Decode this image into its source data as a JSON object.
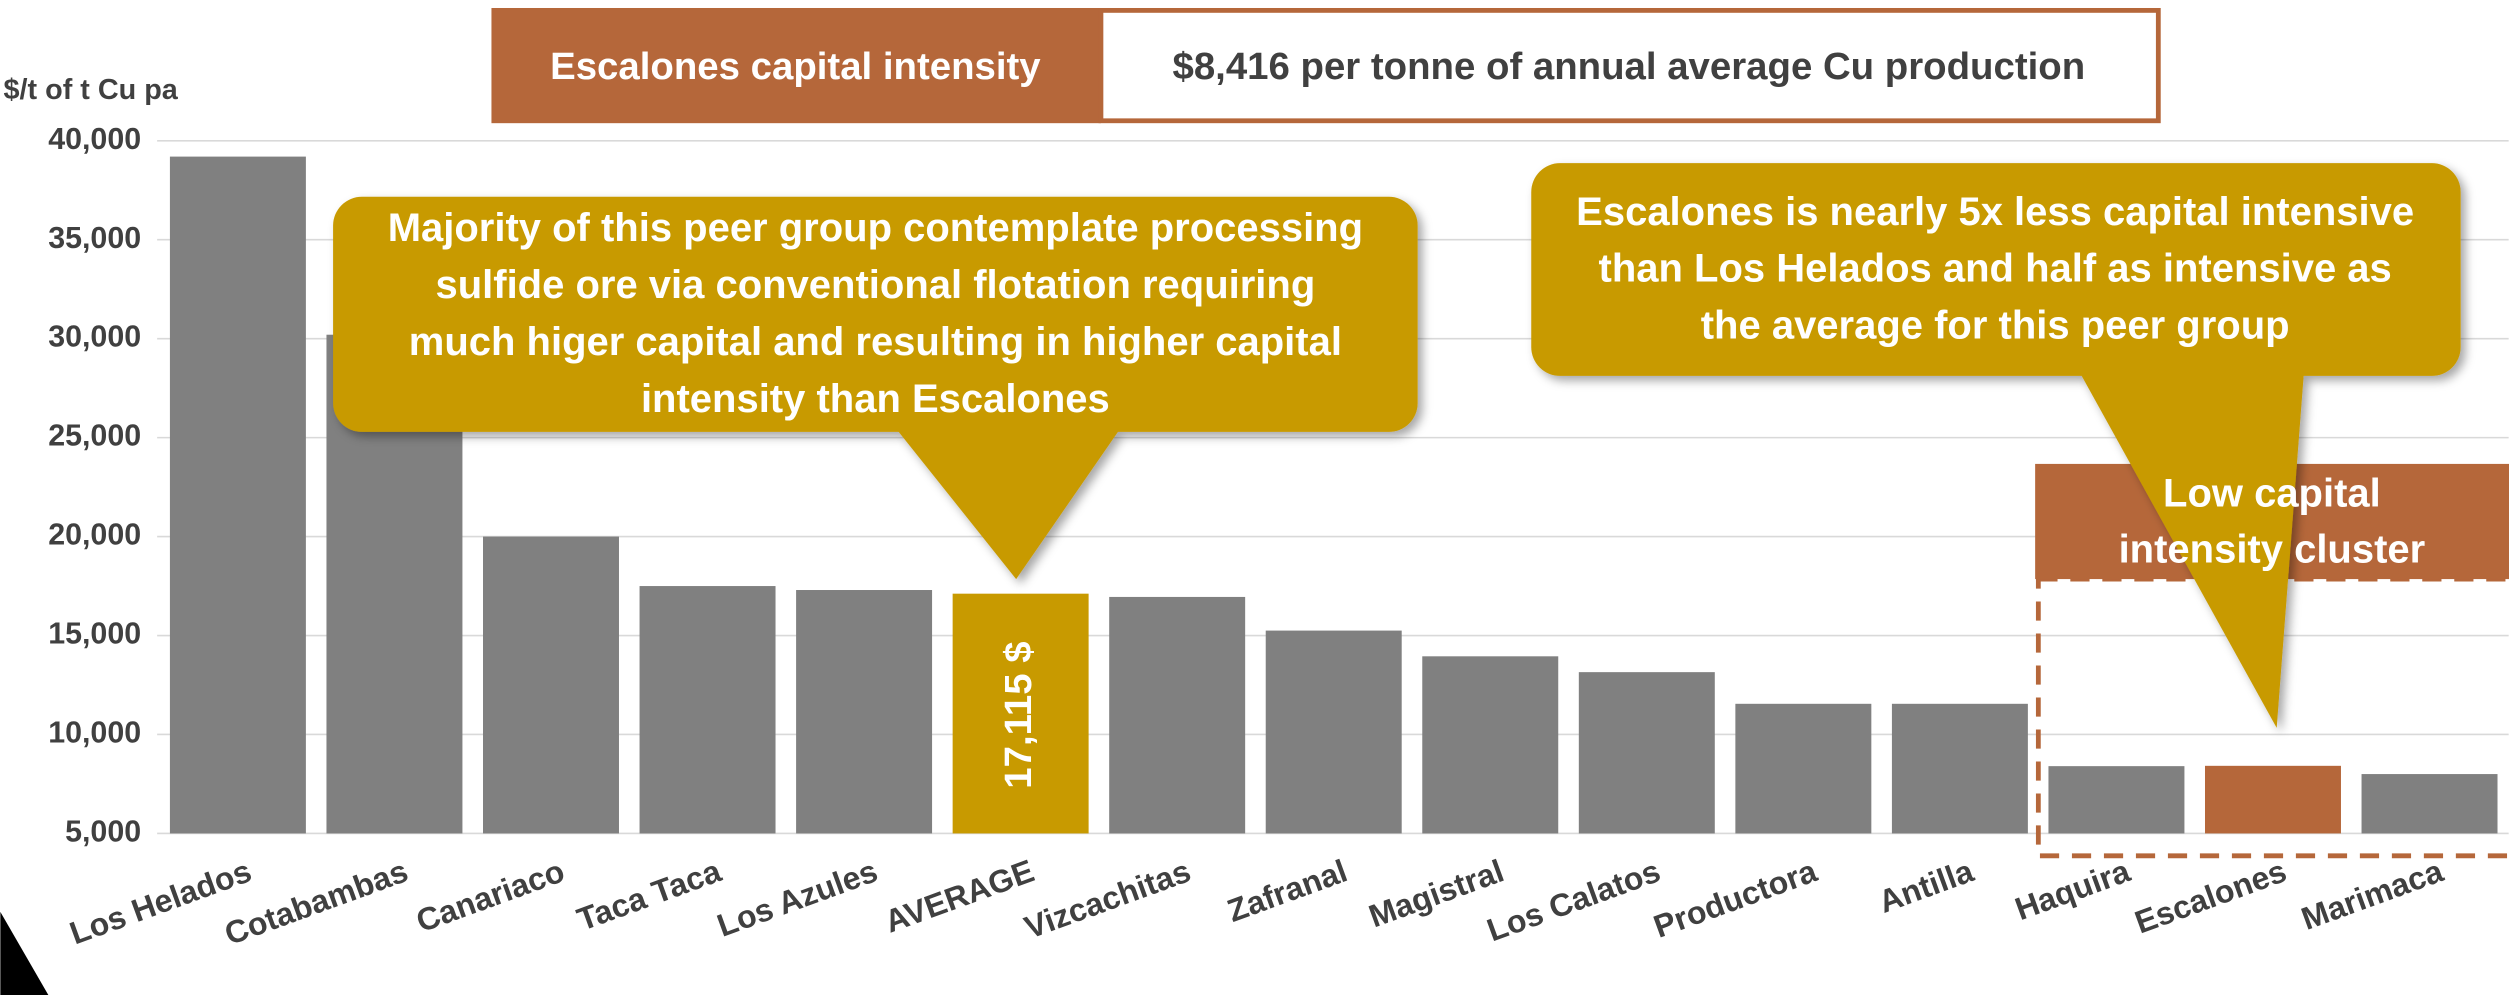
{
  "chart_data": {
    "type": "bar",
    "y_axis_label": "$/t of t Cu pa",
    "header": {
      "label": "Escalones capital intensity",
      "value": "$8,416 per tonne of annual average Cu production"
    },
    "categories": [
      "Los Helados",
      "Cotabambas",
      "Canariaco",
      "Taca Taca",
      "Los Azules",
      "AVERAGE",
      "Vizcachitas",
      "Zafranal",
      "Magistral",
      "Los Calatos",
      "Productora",
      "Antilla",
      "Haquira",
      "Escalones",
      "Marimaca"
    ],
    "values": [
      39200,
      30200,
      20000,
      17500,
      17300,
      17115,
      16950,
      15250,
      13950,
      13150,
      11550,
      11550,
      8400,
      8416,
      8000
    ],
    "value_labels": [
      null,
      null,
      null,
      null,
      null,
      "17,115 $",
      null,
      null,
      null,
      null,
      null,
      null,
      null,
      null,
      null
    ],
    "colors": [
      "#808080",
      "#808080",
      "#808080",
      "#808080",
      "#808080",
      "#c89a00",
      "#808080",
      "#808080",
      "#808080",
      "#808080",
      "#808080",
      "#808080",
      "#808080",
      "#b5673a",
      "#808080"
    ],
    "ylim": [
      5000,
      40000
    ],
    "yticks": [
      {
        "value": 5000,
        "label": "5,000"
      },
      {
        "value": 10000,
        "label": "10,000"
      },
      {
        "value": 15000,
        "label": "15,000"
      },
      {
        "value": 20000,
        "label": "20,000"
      },
      {
        "value": 25000,
        "label": "25,000"
      },
      {
        "value": 30000,
        "label": "30,000"
      },
      {
        "value": 35000,
        "label": "35,000"
      },
      {
        "value": 40000,
        "label": "40,000"
      }
    ],
    "grid": true,
    "annotations": [
      {
        "lines": [
          "Majority of this peer group contemplate processing",
          "sulfide ore via conventional flotation requiring",
          "much higer capital and resulting in higher capital",
          "intensity than Escalones"
        ]
      },
      {
        "lines": [
          "Escalones is nearly 5x less capital intensive",
          "than Los Helados and half as intensive as",
          "the average for this peer group"
        ]
      },
      {
        "lines": [
          "Low capital",
          "intensity cluster"
        ]
      }
    ]
  }
}
